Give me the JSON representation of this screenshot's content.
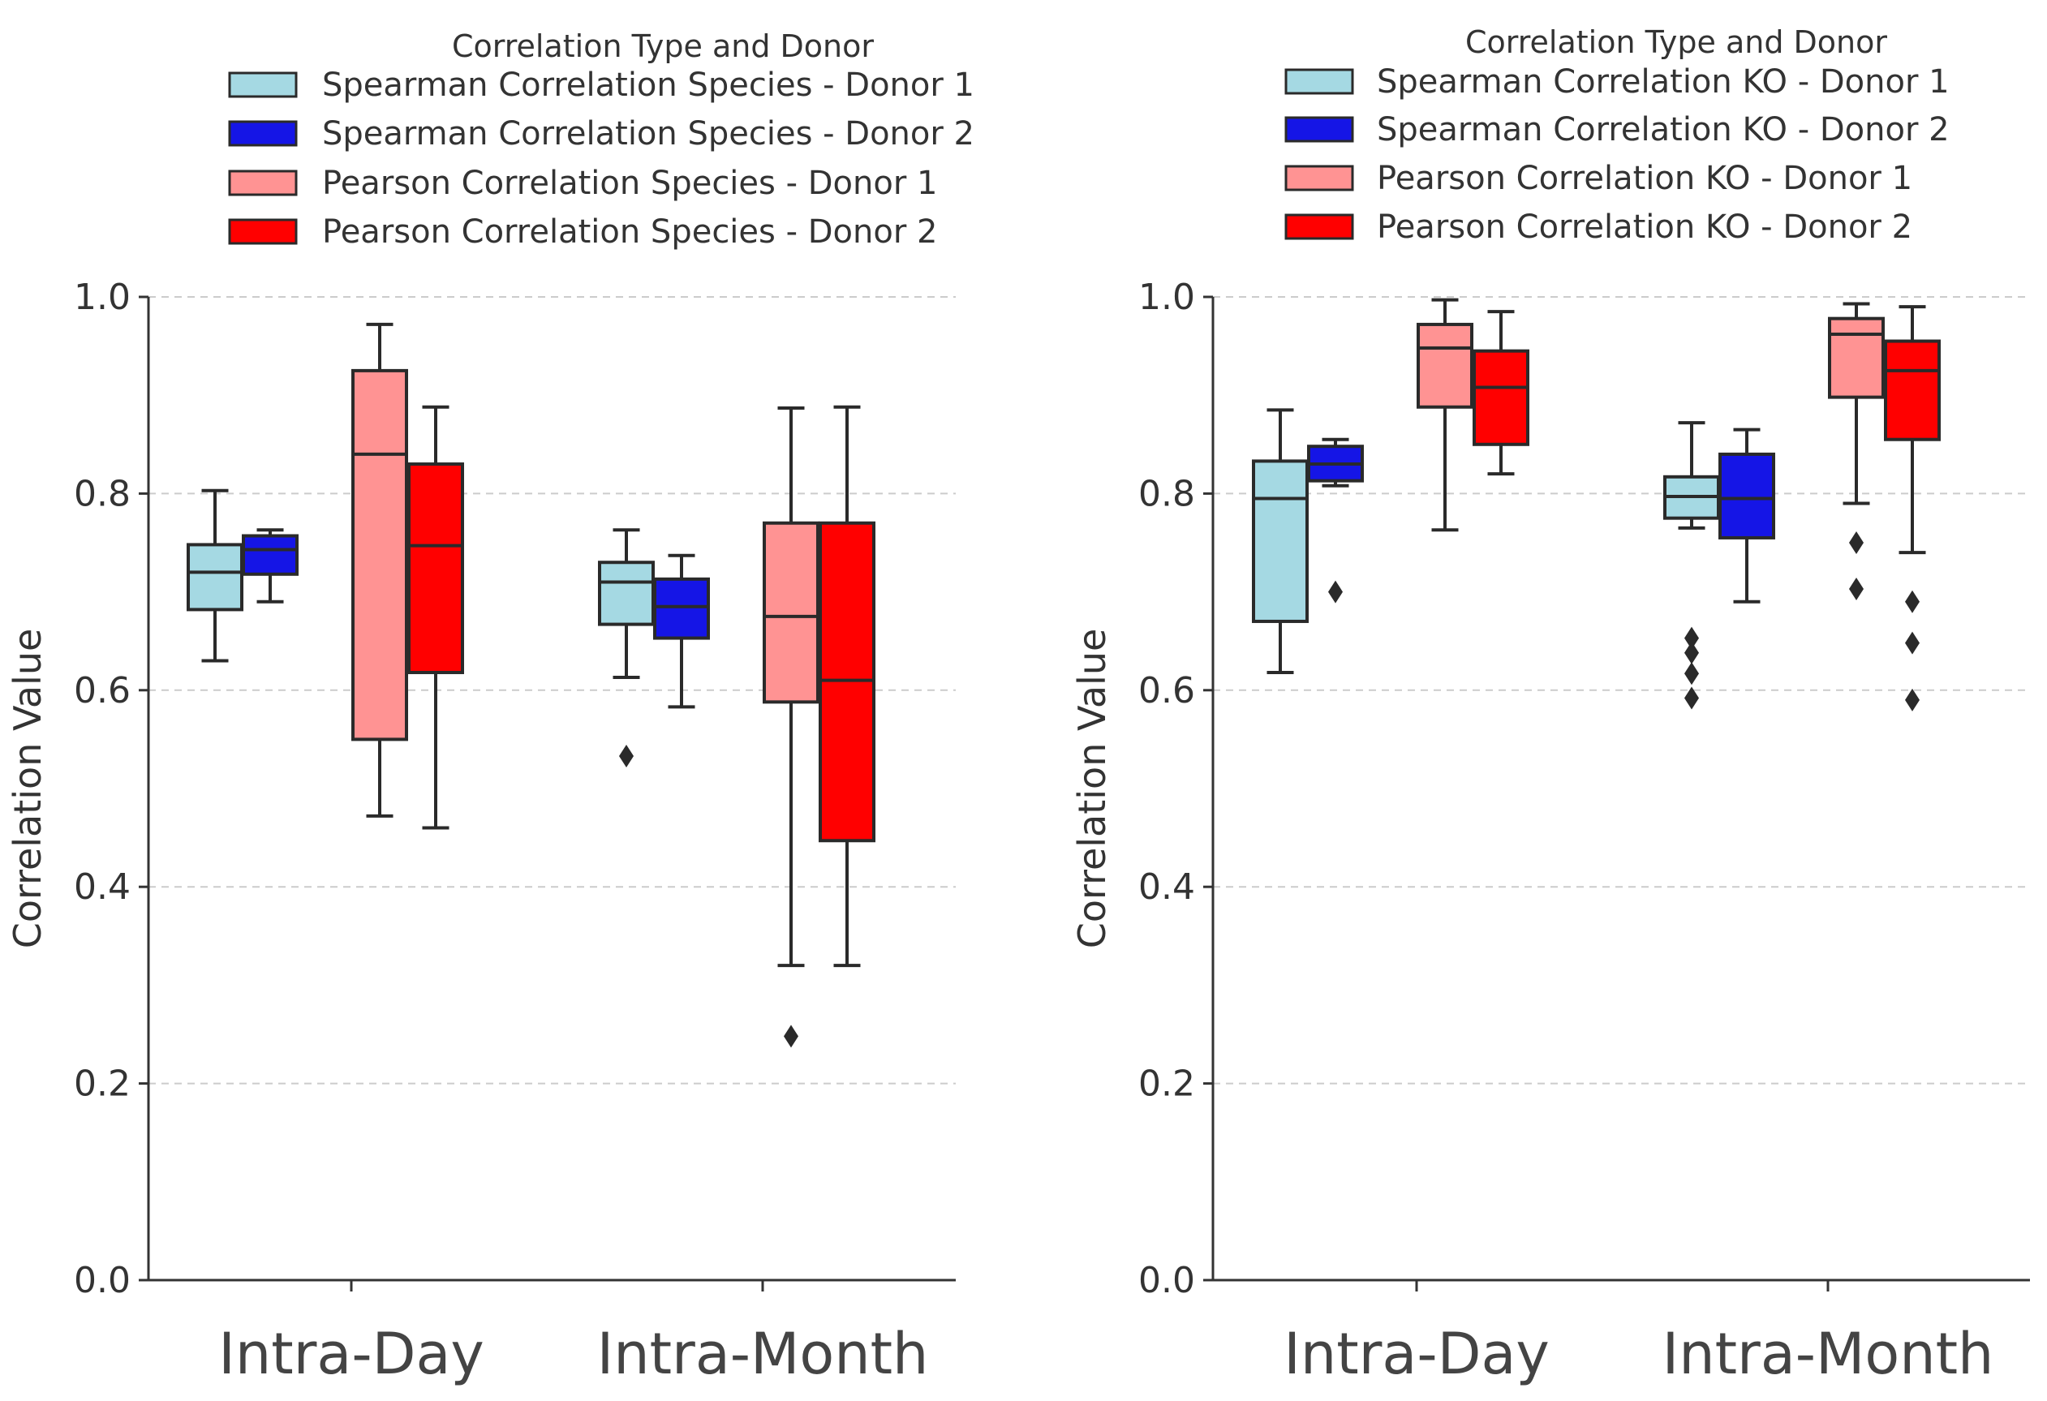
{
  "chart_data": [
    {
      "type": "box",
      "ylabel": "Correlation Value",
      "ylim": [
        0.0,
        1.0
      ],
      "yticks": [
        "0.0",
        "0.2",
        "0.4",
        "0.6",
        "0.8",
        "1.0"
      ],
      "ytick_values": [
        0.0,
        0.2,
        0.4,
        0.6,
        0.8,
        1.0
      ],
      "grid": true,
      "categories": [
        "Intra-Day",
        "Intra-Month"
      ],
      "legend": {
        "title": "Correlation Type and Donor",
        "placement": "top"
      },
      "series": [
        {
          "name": "Spearman Correlation Species - Donor 1",
          "color": "#a5d9e3",
          "boxes": [
            {
              "min": 0.63,
              "q1": 0.682,
              "median": 0.72,
              "q3": 0.748,
              "max": 0.803,
              "outliers": []
            },
            {
              "min": 0.613,
              "q1": 0.667,
              "median": 0.71,
              "q3": 0.73,
              "max": 0.763,
              "outliers": [
                0.533
              ]
            }
          ]
        },
        {
          "name": "Spearman Correlation Species - Donor 2",
          "color": "#1515e6",
          "boxes": [
            {
              "min": 0.69,
              "q1": 0.718,
              "median": 0.743,
              "q3": 0.757,
              "max": 0.763,
              "outliers": []
            },
            {
              "min": 0.583,
              "q1": 0.653,
              "median": 0.685,
              "q3": 0.713,
              "max": 0.737,
              "outliers": []
            }
          ]
        },
        {
          "name": "Pearson Correlation Species - Donor 1",
          "color": "#ff9393",
          "boxes": [
            {
              "min": 0.472,
              "q1": 0.55,
              "median": 0.84,
              "q3": 0.925,
              "max": 0.972,
              "outliers": []
            },
            {
              "min": 0.32,
              "q1": 0.588,
              "median": 0.675,
              "q3": 0.77,
              "max": 0.887,
              "outliers": [
                0.248
              ]
            }
          ]
        },
        {
          "name": "Pearson Correlation Species - Donor 2",
          "color": "#ff0000",
          "boxes": [
            {
              "min": 0.46,
              "q1": 0.618,
              "median": 0.747,
              "q3": 0.83,
              "max": 0.888,
              "outliers": []
            },
            {
              "min": 0.32,
              "q1": 0.447,
              "median": 0.61,
              "q3": 0.77,
              "max": 0.888,
              "outliers": []
            }
          ]
        }
      ]
    },
    {
      "type": "box",
      "ylabel": "Correlation Value",
      "ylim": [
        0.0,
        1.0
      ],
      "yticks": [
        "0.0",
        "0.2",
        "0.4",
        "0.6",
        "0.8",
        "1.0"
      ],
      "ytick_values": [
        0.0,
        0.2,
        0.4,
        0.6,
        0.8,
        1.0
      ],
      "grid": true,
      "categories": [
        "Intra-Day",
        "Intra-Month"
      ],
      "legend": {
        "title": "Correlation Type and Donor",
        "placement": "top"
      },
      "series": [
        {
          "name": "Spearman Correlation KO - Donor 1",
          "color": "#a5d9e3",
          "boxes": [
            {
              "min": 0.618,
              "q1": 0.67,
              "median": 0.795,
              "q3": 0.833,
              "max": 0.885,
              "outliers": []
            },
            {
              "min": 0.765,
              "q1": 0.775,
              "median": 0.797,
              "q3": 0.817,
              "max": 0.872,
              "outliers": [
                0.653,
                0.638,
                0.617,
                0.592
              ]
            }
          ]
        },
        {
          "name": "Spearman Correlation KO - Donor 2",
          "color": "#1515e6",
          "boxes": [
            {
              "min": 0.808,
              "q1": 0.813,
              "median": 0.83,
              "q3": 0.848,
              "max": 0.855,
              "outliers": [
                0.7
              ]
            },
            {
              "min": 0.69,
              "q1": 0.755,
              "median": 0.795,
              "q3": 0.84,
              "max": 0.865,
              "outliers": []
            }
          ]
        },
        {
          "name": "Pearson Correlation KO - Donor 1",
          "color": "#ff9393",
          "boxes": [
            {
              "min": 0.763,
              "q1": 0.888,
              "median": 0.948,
              "q3": 0.972,
              "max": 0.997,
              "outliers": []
            },
            {
              "min": 0.79,
              "q1": 0.898,
              "median": 0.962,
              "q3": 0.978,
              "max": 0.993,
              "outliers": [
                0.75,
                0.703
              ]
            }
          ]
        },
        {
          "name": "Pearson Correlation KO - Donor 2",
          "color": "#ff0000",
          "boxes": [
            {
              "min": 0.82,
              "q1": 0.85,
              "median": 0.908,
              "q3": 0.945,
              "max": 0.985,
              "outliers": []
            },
            {
              "min": 0.74,
              "q1": 0.855,
              "median": 0.925,
              "q3": 0.955,
              "max": 0.99,
              "outliers": [
                0.69,
                0.648,
                0.59
              ]
            }
          ]
        }
      ]
    }
  ]
}
